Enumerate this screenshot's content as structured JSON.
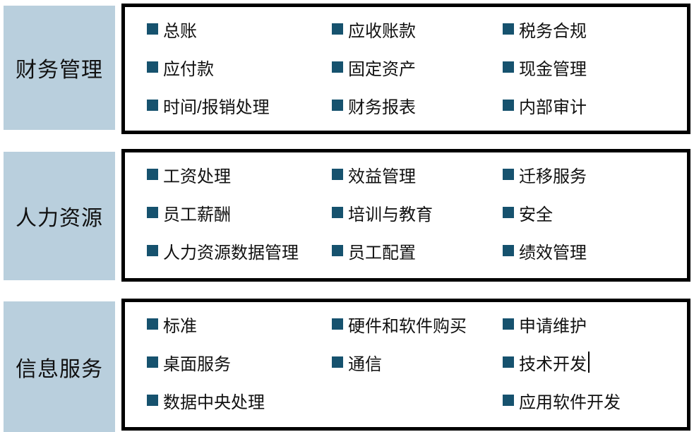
{
  "colors": {
    "bullet": "#16526e",
    "label_bg": "#b9cfdd",
    "box_border": "#000000",
    "text": "#111111"
  },
  "sections": [
    {
      "label": "财务管理",
      "columns": [
        [
          "总账",
          "应付款",
          "时间/报销处理"
        ],
        [
          "应收账款",
          "固定资产",
          "财务报表"
        ],
        [
          "税务合规",
          "现金管理",
          "内部审计"
        ]
      ]
    },
    {
      "label": "人力资源",
      "columns": [
        [
          "工资处理",
          "员工薪酬",
          "人力资源数据管理"
        ],
        [
          "效益管理",
          "培训与教育",
          "员工配置"
        ],
        [
          "迁移服务",
          "安全",
          "绩效管理"
        ]
      ]
    },
    {
      "label": "信息服务",
      "columns": [
        [
          "标准",
          "桌面服务",
          "数据中央处理"
        ],
        [
          "硬件和软件购买",
          "通信",
          ""
        ],
        [
          "申请维护",
          "技术开发",
          "应用软件开发"
        ]
      ]
    }
  ],
  "caret": {
    "section": 2,
    "column": 2,
    "row": 1
  }
}
